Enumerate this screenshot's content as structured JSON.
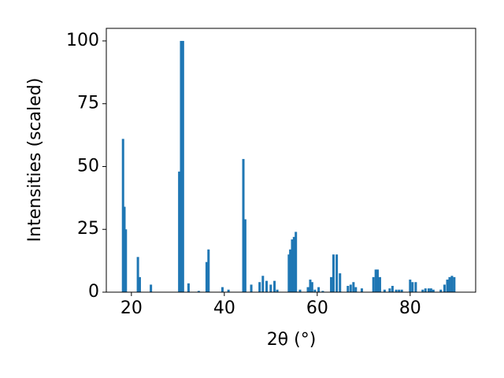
{
  "chart_data": {
    "type": "bar",
    "xlabel": "2θ (°)",
    "ylabel": "Intensities (scaled)",
    "color": "#1f77b4",
    "xlim": [
      14.6,
      94.1
    ],
    "ylim": [
      0,
      105
    ],
    "xticks": [
      20,
      40,
      60,
      80
    ],
    "yticks": [
      0,
      25,
      50,
      75,
      100
    ],
    "x": [
      18.2,
      18.5,
      18.8,
      21.4,
      21.8,
      24.2,
      30.3,
      30.7,
      31.1,
      32.3,
      34.5,
      36.2,
      36.6,
      39.6,
      40.9,
      44.1,
      44.5,
      45.8,
      47.6,
      48.3,
      49.1,
      50.0,
      50.8,
      51.4,
      53.9,
      54.2,
      54.6,
      55.0,
      55.4,
      56.3,
      58.0,
      58.5,
      58.9,
      59.5,
      60.3,
      61.2,
      63.0,
      63.5,
      64.2,
      64.9,
      66.6,
      67.2,
      67.8,
      68.3,
      69.6,
      72.1,
      72.6,
      73.0,
      73.5,
      74.5,
      75.6,
      76.2,
      77.0,
      77.6,
      78.2,
      80.0,
      80.5,
      81.2,
      82.7,
      83.3,
      84.0,
      84.5,
      85.0,
      86.6,
      87.4,
      88.0,
      88.5,
      89.0,
      89.5
    ],
    "values": [
      61,
      34,
      25,
      14,
      6,
      3,
      48,
      100,
      100,
      3.5,
      0.5,
      12,
      17,
      2,
      1,
      53,
      29,
      3,
      4,
      6.5,
      4.5,
      3,
      4.5,
      1,
      15,
      17,
      21,
      22,
      24,
      1,
      2,
      5,
      4,
      1,
      2,
      0.5,
      6,
      15,
      15,
      7.5,
      2.5,
      3,
      4,
      2,
      1.5,
      6,
      9,
      9,
      6,
      1,
      1.5,
      2.5,
      1,
      1,
      1,
      5,
      4,
      4,
      1,
      1.5,
      1.5,
      1.5,
      1,
      1,
      3,
      5,
      6,
      6.5,
      6
    ]
  }
}
